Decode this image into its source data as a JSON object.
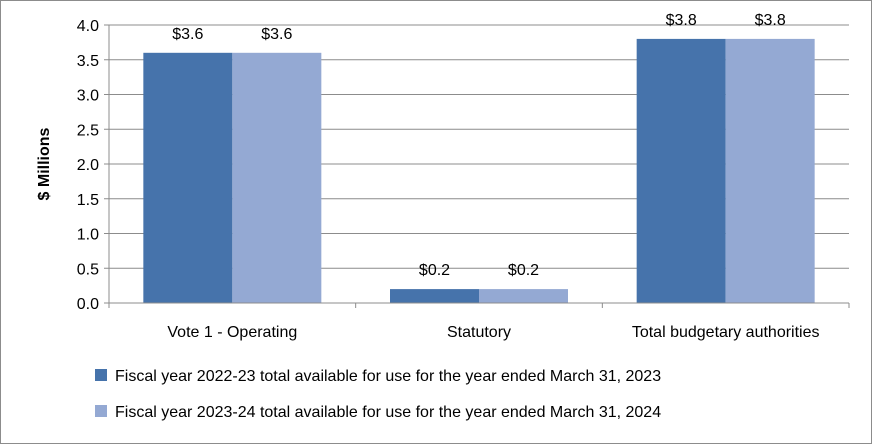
{
  "chart_data": {
    "type": "bar",
    "categories": [
      "Vote 1 - Operating",
      "Statutory",
      "Total budgetary authorities"
    ],
    "series": [
      {
        "name": "Fiscal year 2022-23 total available for use for the year ended March 31, 2023",
        "values": [
          3.6,
          0.2,
          3.8
        ],
        "labels": [
          "$3.6",
          "$0.2",
          "$3.8"
        ],
        "color": "#4673ab"
      },
      {
        "name": "Fiscal year 2023-24 total available for use for the year ended March 31, 2024",
        "values": [
          3.6,
          0.2,
          3.8
        ],
        "labels": [
          "$3.6",
          "$0.2",
          "$3.8"
        ],
        "color": "#94a9d3"
      }
    ],
    "title": "",
    "xlabel": "",
    "ylabel": "$ Millions",
    "ylim": [
      0,
      4.0
    ],
    "yticks": [
      "0.0",
      "0.5",
      "1.0",
      "1.5",
      "2.0",
      "2.5",
      "3.0",
      "3.5",
      "4.0"
    ],
    "grid": true,
    "legend": "bottom"
  }
}
